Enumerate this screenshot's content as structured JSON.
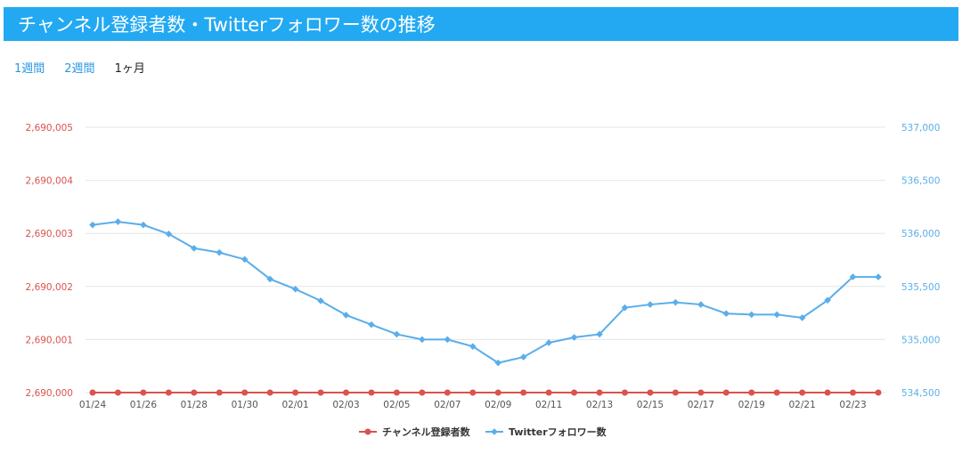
{
  "header": {
    "title": "チャンネル登録者数・Twitterフォロワー数の推移"
  },
  "tabs": [
    {
      "label": "1週間",
      "active": false
    },
    {
      "label": "2週間",
      "active": false
    },
    {
      "label": "1ヶ月",
      "active": true
    }
  ],
  "colors": {
    "subscribers": "#d9534f",
    "twitter": "#5aaeea",
    "header": "#23a9f2"
  },
  "chart_data": {
    "type": "line",
    "x": [
      "01/24",
      "01/25",
      "01/26",
      "01/27",
      "01/28",
      "01/29",
      "01/30",
      "01/31",
      "02/01",
      "02/02",
      "02/03",
      "02/04",
      "02/05",
      "02/06",
      "02/07",
      "02/08",
      "02/09",
      "02/10",
      "02/11",
      "02/12",
      "02/13",
      "02/14",
      "02/15",
      "02/16",
      "02/17",
      "02/18",
      "02/19",
      "02/20",
      "02/21",
      "02/22",
      "02/23",
      "02/24"
    ],
    "x_tick_labels": [
      "01/24",
      "01/26",
      "01/28",
      "01/30",
      "02/01",
      "02/03",
      "02/05",
      "02/07",
      "02/09",
      "02/11",
      "02/13",
      "02/15",
      "02/17",
      "02/19",
      "02/21",
      "02/23"
    ],
    "y_left": {
      "ylim": [
        2690000,
        2690005
      ],
      "ticks": [
        "2,690,000",
        "2,690,001",
        "2,690,002",
        "2,690,003",
        "2,690,004",
        "2,690,005"
      ]
    },
    "y_right": {
      "ylim": [
        534500,
        537000
      ],
      "ticks": [
        "534,500",
        "535,000",
        "535,500",
        "536,000",
        "536,500",
        "537,000"
      ]
    },
    "series": [
      {
        "name": "チャンネル登録者数",
        "axis": "left",
        "values": [
          2690000,
          2690000,
          2690000,
          2690000,
          2690000,
          2690000,
          2690000,
          2690000,
          2690000,
          2690000,
          2690000,
          2690000,
          2690000,
          2690000,
          2690000,
          2690000,
          2690000,
          2690000,
          2690000,
          2690000,
          2690000,
          2690000,
          2690000,
          2690000,
          2690000,
          2690000,
          2690000,
          2690000,
          2690000,
          2690000,
          2690000,
          2690000
        ]
      },
      {
        "name": "Twitterフォロワー数",
        "axis": "right",
        "values": [
          536080,
          536110,
          536080,
          535995,
          535860,
          535820,
          535755,
          535570,
          535475,
          535365,
          535230,
          535140,
          535050,
          535000,
          535000,
          534935,
          534780,
          534835,
          534970,
          535020,
          535050,
          535300,
          535330,
          535350,
          535330,
          535245,
          535235,
          535235,
          535205,
          535370,
          535590,
          535590
        ]
      }
    ],
    "legend": "bottom-center",
    "grid": true
  }
}
